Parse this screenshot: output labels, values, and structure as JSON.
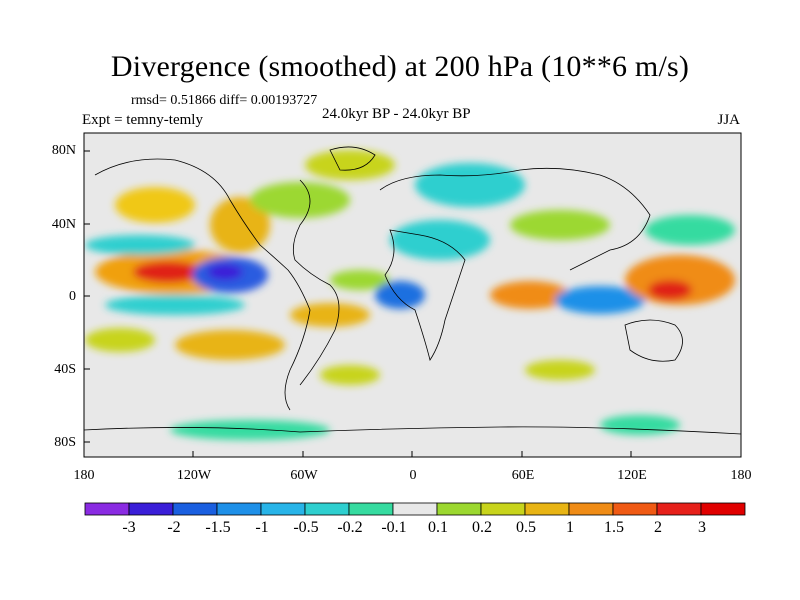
{
  "title": "Divergence (smoothed) at 200 hPa (10**6 m/s)",
  "stats": {
    "rmsd_label": "rmsd=",
    "rmsd": "0.51866",
    "diff_label": "diff=",
    "diff": "0.00193727"
  },
  "experiment": "Expt = temny-temly",
  "period": "24.0kyr BP - 24.0kyr BP",
  "season": "JJA",
  "axes": {
    "y_ticks": [
      "80N",
      "40N",
      "0",
      "40S",
      "80S"
    ],
    "x_ticks": [
      "180",
      "120W",
      "60W",
      "0",
      "60E",
      "120E",
      "180"
    ]
  },
  "colorbar": {
    "labels": [
      "-3",
      "-2",
      "-1.5",
      "-1",
      "-0.5",
      "-0.2",
      "-0.1",
      "0.1",
      "0.2",
      "0.5",
      "1",
      "1.5",
      "2",
      "3"
    ],
    "colors": [
      "#8a2be2",
      "#3a1ed8",
      "#1a5fe0",
      "#1e90e8",
      "#28b4e8",
      "#2ecfcf",
      "#36dba0",
      "#e8e8e8",
      "#9cd830",
      "#c8d41c",
      "#e8b414",
      "#f08c16",
      "#f05a14",
      "#e6201a",
      "#e00000"
    ]
  }
}
